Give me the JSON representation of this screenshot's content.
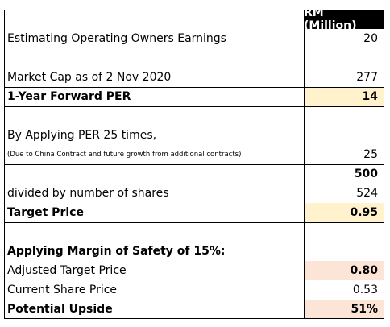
{
  "header": {
    "unit": "RM (Million)"
  },
  "rows": [
    {
      "label": "Estimating Operating Owners Earnings",
      "value": "20"
    },
    {
      "label": "",
      "value": ""
    },
    {
      "label": "Market Cap as of 2 Nov 2020",
      "value": "277"
    },
    {
      "label": "1-Year Forward PER",
      "value": "14"
    },
    {
      "label": "",
      "value": ""
    },
    {
      "label": "By Applying PER 25 times,",
      "value": ""
    },
    {
      "label": "(Due to China Contract and future growth from additional contracts)",
      "value": "25"
    },
    {
      "label": "",
      "value": "500"
    },
    {
      "label": "divided by number of shares",
      "value": "524"
    },
    {
      "label": "Target Price",
      "value": "0.95"
    },
    {
      "label": "",
      "value": ""
    },
    {
      "label": "Applying Margin of Safety of 15%:",
      "value": ""
    },
    {
      "label": "Adjusted Target Price",
      "value": "0.80"
    },
    {
      "label": "Current Share Price",
      "value": "0.53"
    },
    {
      "label": "Potential Upside",
      "value": "51%"
    }
  ],
  "colors": {
    "peach": "#fce4d6",
    "yellow": "#fff2cc",
    "header_bg": "#000000",
    "header_text": "#ffffff"
  }
}
